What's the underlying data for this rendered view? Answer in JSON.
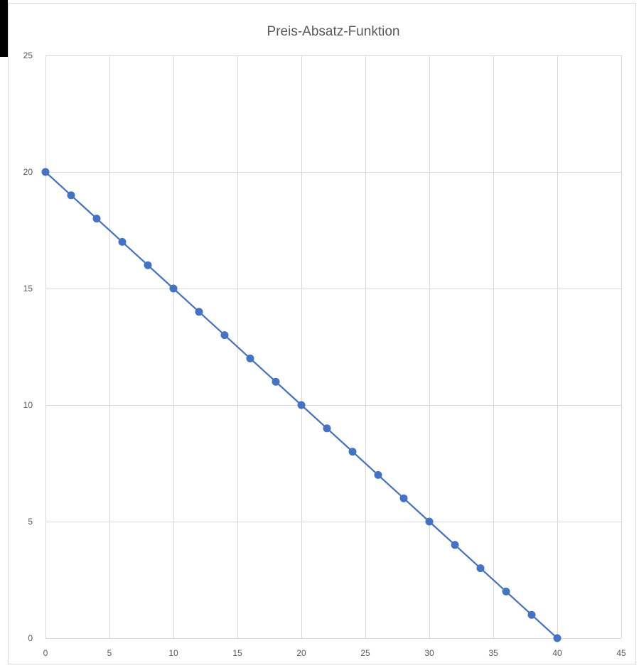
{
  "chart_data": {
    "type": "scatter",
    "title": "Preis-Absatz-Funktion",
    "xlabel": "",
    "ylabel": "",
    "xlim": [
      0,
      45
    ],
    "ylim": [
      0,
      25
    ],
    "xticks": [
      0,
      5,
      10,
      15,
      20,
      25,
      30,
      35,
      40,
      45
    ],
    "yticks": [
      0,
      5,
      10,
      15,
      20,
      25
    ],
    "grid": true,
    "legend": "none",
    "series": [
      {
        "color": "#4472c4",
        "markers": true,
        "lines": true,
        "x": [
          0,
          2,
          4,
          6,
          8,
          10,
          12,
          14,
          16,
          18,
          20,
          22,
          24,
          26,
          28,
          30,
          32,
          34,
          36,
          38,
          40
        ],
        "y": [
          20,
          19,
          18,
          17,
          16,
          15,
          14,
          13,
          12,
          11,
          10,
          9,
          8,
          7,
          6,
          5,
          4,
          3,
          2,
          1,
          0
        ]
      }
    ]
  }
}
